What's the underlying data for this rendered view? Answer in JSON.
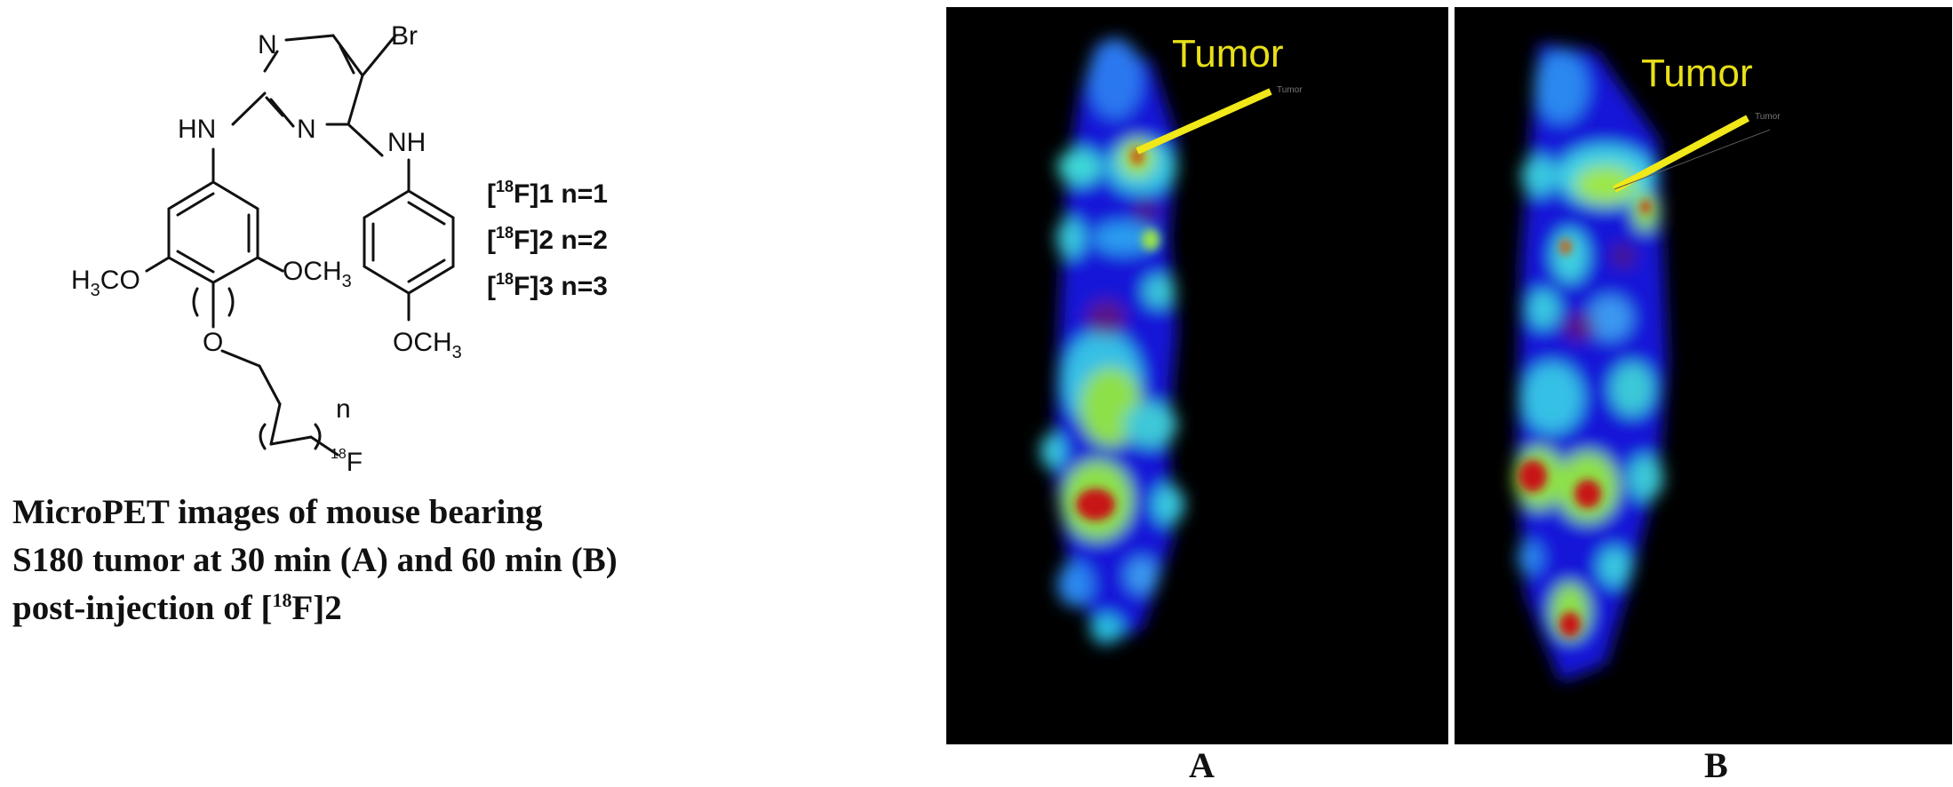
{
  "structure": {
    "atoms": {
      "br": "Br",
      "n_top": "N",
      "n_mid": "N",
      "nh_left": "HN",
      "nh_right": "NH",
      "och3_left": "H",
      "och3_left_sub": "3",
      "och3_left_rest": "CO",
      "och3_right": "OCH",
      "och3_right_sub": "3",
      "o_link": "O",
      "n_label": "n",
      "f_mass": "18",
      "f_atom": "F",
      "och3_bottom": "OCH",
      "och3_bottom_sub": "3"
    },
    "compounds": [
      {
        "open": "[",
        "mass": "18",
        "close": "F]1 n=1"
      },
      {
        "open": "[",
        "mass": "18",
        "close": "F]2 n=2"
      },
      {
        "open": "[",
        "mass": "18",
        "close": "F]3 n=3"
      }
    ]
  },
  "caption": {
    "line1": "MicroPET images of mouse bearing",
    "line2": "S180 tumor at 30 min (A) and 60 min (B)",
    "line3_pre": "post-injection of [",
    "line3_sup": "18",
    "line3_post": "F]2"
  },
  "panels": {
    "a": {
      "letter": "A",
      "tumor_label": "Tumor",
      "tiny_label": "Tumor"
    },
    "b": {
      "letter": "B",
      "tumor_label": "Tumor",
      "tiny_label": "Tumor"
    }
  },
  "colors": {
    "label_yellow": "#e8e018",
    "pet_background": "#000000"
  }
}
